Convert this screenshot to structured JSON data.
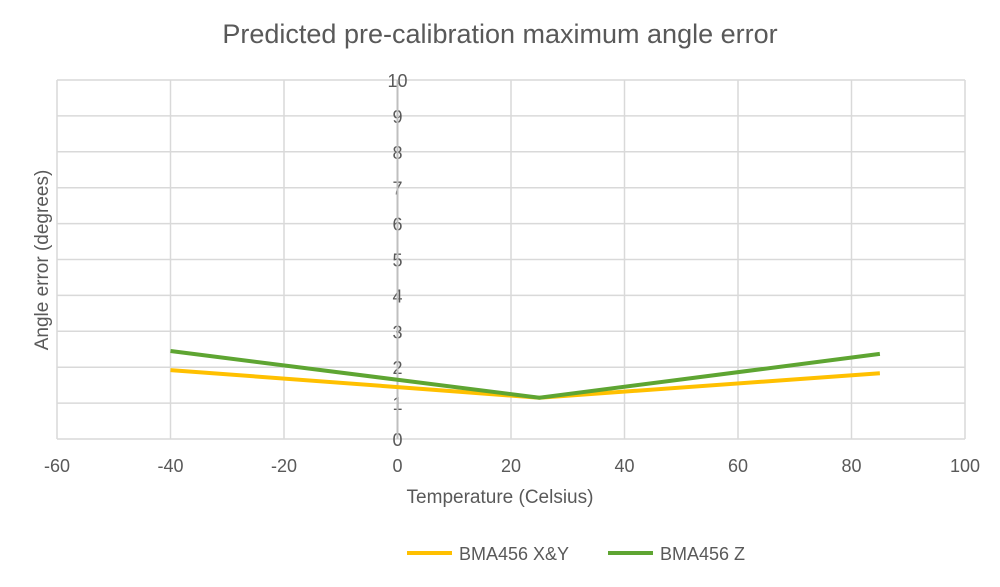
{
  "chart_data": {
    "type": "scatter-line",
    "title": "Predicted pre-calibration maximum angle error",
    "xlabel": "Temperature  (Celsius)",
    "ylabel": "Angle error  (degrees)",
    "xlim": [
      -60,
      100
    ],
    "ylim": [
      0,
      10
    ],
    "xticks": [
      -60,
      -40,
      -20,
      0,
      20,
      40,
      60,
      80,
      100
    ],
    "yticks": [
      0,
      1,
      2,
      3,
      4,
      5,
      6,
      7,
      8,
      9,
      10
    ],
    "grid": true,
    "legend_position": "bottom",
    "series": [
      {
        "name": "BMA456 X&Y",
        "color": "#FFC000",
        "x": [
          -40,
          25,
          85
        ],
        "y": [
          1.92,
          1.15,
          1.83
        ]
      },
      {
        "name": "BMA456 Z",
        "color": "#5EA532",
        "x": [
          -40,
          25,
          85
        ],
        "y": [
          2.45,
          1.15,
          2.37
        ]
      }
    ]
  }
}
